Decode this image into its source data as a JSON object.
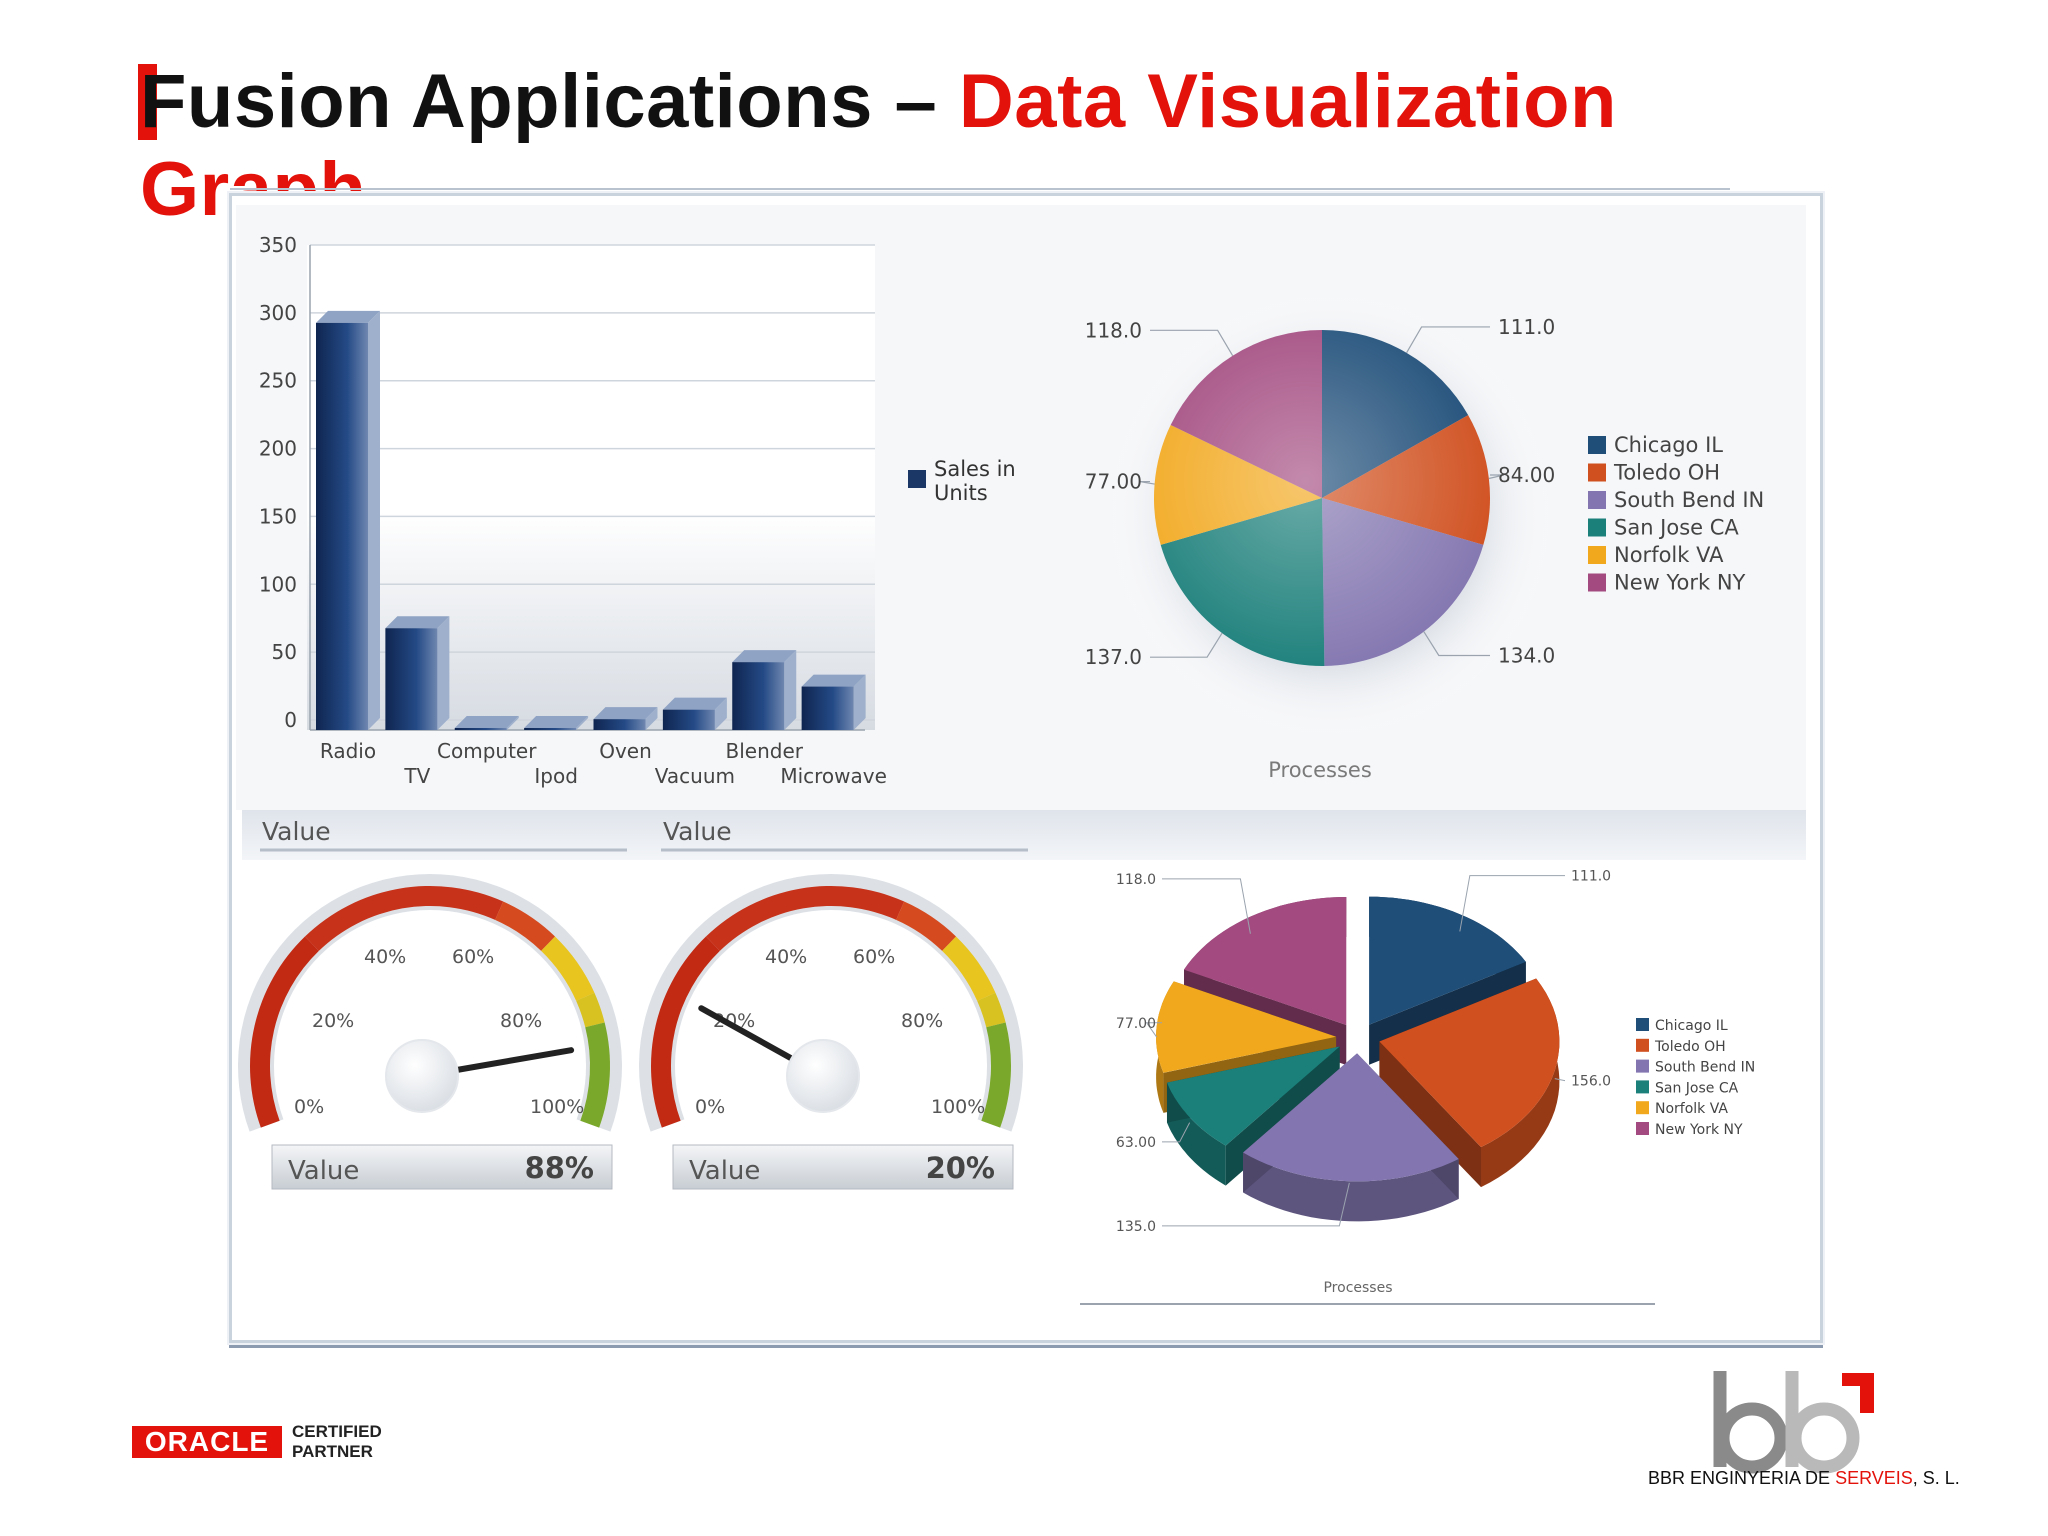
{
  "slide": {
    "title_part1": "Fusion Applications – ",
    "title_part2": "Data Visualization Graph"
  },
  "colors": {
    "accent": "#e3120b",
    "bar": "#1b3766",
    "chicago": "#1f4e79",
    "toledo": "#d0501f",
    "south_bend": "#8376b0",
    "san_jose": "#1b7f7a",
    "norfolk": "#f2a81d",
    "new_york": "#a34b80"
  },
  "footer": {
    "oracle_word": "ORACLE",
    "oracle_cert_line1": "CERTIFIED",
    "oracle_cert_line2": "PARTNER",
    "company_logo_text": "bbr",
    "company_name_part1": "BBR ENGINYERIA DE ",
    "company_name_part2": "SERVEIS",
    "company_name_part3": ", S. L."
  },
  "chart_data": [
    {
      "type": "bar",
      "categories": [
        "Radio",
        "TV",
        "Computer",
        "Ipod",
        "Oven",
        "Vacuum",
        "Blender",
        "Microwave"
      ],
      "series": [
        {
          "name": "Sales in Units",
          "values": [
            300,
            75,
            0,
            0,
            8,
            15,
            50,
            32
          ]
        }
      ],
      "yticks": [
        0,
        50,
        100,
        150,
        200,
        250,
        300,
        350
      ],
      "ylim": [
        0,
        350
      ],
      "legend": "right",
      "grid": true
    },
    {
      "type": "pie",
      "categories": [
        "Chicago IL",
        "Toledo OH",
        "South Bend IN",
        "San Jose CA",
        "Norfolk VA",
        "New York NY"
      ],
      "values": [
        111.0,
        84.0,
        134.0,
        137.0,
        77.0,
        118.0
      ],
      "value_labels": [
        "111.0",
        "84.00",
        "134.0",
        "137.0",
        "77.00",
        "118.0"
      ],
      "xlabel": "Processes",
      "legend": "right"
    },
    {
      "type": "gauge",
      "title": "Value",
      "ticks": [
        "0%",
        "20%",
        "40%",
        "60%",
        "80%",
        "100%"
      ],
      "value": 88,
      "readout_label": "Value",
      "readout_value": "88%"
    },
    {
      "type": "gauge",
      "title": "Value",
      "ticks": [
        "0%",
        "20%",
        "40%",
        "60%",
        "80%",
        "100%"
      ],
      "value": 20,
      "readout_label": "Value",
      "readout_value": "20%"
    },
    {
      "type": "pie",
      "style": "3d-exploded",
      "categories": [
        "Chicago IL",
        "Toledo OH",
        "South Bend IN",
        "San Jose CA",
        "Norfolk VA",
        "New York NY"
      ],
      "values": [
        111.0,
        156.0,
        135.0,
        63.0,
        77.0,
        118.0
      ],
      "value_labels": [
        "111.0",
        "156.0",
        "135.0",
        "63.00",
        "77.00",
        "118.0"
      ],
      "xlabel": "Processes",
      "legend": "right"
    }
  ]
}
